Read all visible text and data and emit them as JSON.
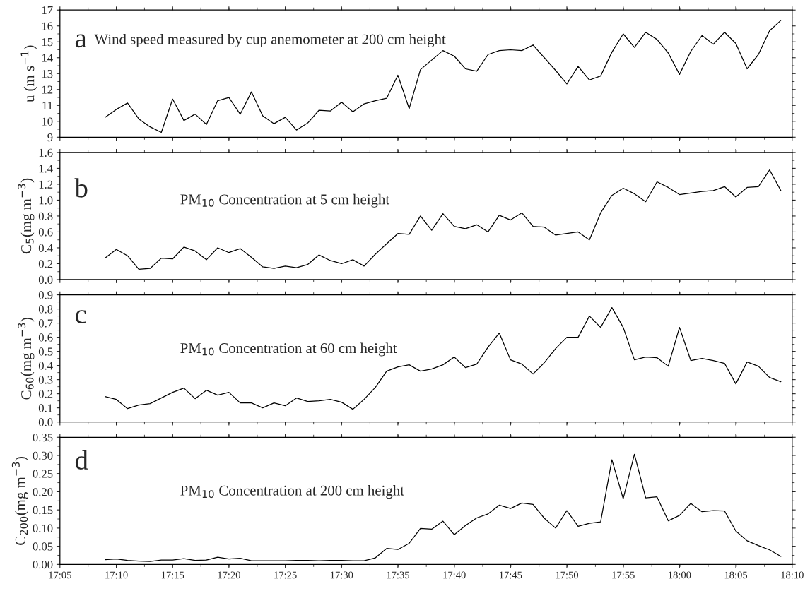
{
  "chart_data": [
    {
      "type": "line",
      "tick_labels": "y",
      "ylabel": "u (m s$^{−1}$)",
      "annotations": [
        "a",
        "Wind speed measured by cup anemometer at 200 cm height"
      ],
      "xlim": [
        17.0833,
        18.1667
      ],
      "xticks": [
        {
          "value": 17.0833,
          "label": null
        },
        {
          "value": 17.1667,
          "label": null
        },
        {
          "value": 17.25,
          "label": null
        },
        {
          "value": 17.3333,
          "label": null
        },
        {
          "value": 17.4167,
          "label": null
        },
        {
          "value": 17.5,
          "label": null
        },
        {
          "value": 17.5833,
          "label": null
        },
        {
          "value": 17.6667,
          "label": null
        },
        {
          "value": 17.75,
          "label": null
        },
        {
          "value": 17.8333,
          "label": null
        },
        {
          "value": 17.9167,
          "label": null
        },
        {
          "value": 18.0,
          "label": null
        },
        {
          "value": 18.0833,
          "label": null
        },
        {
          "value": 18.1667,
          "label": null
        }
      ],
      "ylim": [
        9,
        17
      ],
      "yticks": [
        9,
        10,
        11,
        12,
        13,
        14,
        15,
        16,
        17
      ],
      "series": [
        {
          "color": "#000000",
          "x": [
            17.15,
            17.1667,
            17.1833,
            17.2,
            17.2167,
            17.2333,
            17.25,
            17.2667,
            17.2833,
            17.3,
            17.3167,
            17.3333,
            17.35,
            17.3667,
            17.3833,
            17.4,
            17.4167,
            17.4333,
            17.45,
            17.4667,
            17.4833,
            17.5,
            17.5167,
            17.5333,
            17.55,
            17.5667,
            17.5833,
            17.6,
            17.6167,
            17.6333,
            17.65,
            17.6667,
            17.6833,
            17.7,
            17.7167,
            17.7333,
            17.75,
            17.7667,
            17.7833,
            17.8,
            17.8167,
            17.8333,
            17.85,
            17.8667,
            17.8833,
            17.9,
            17.9167,
            17.9333,
            17.95,
            17.9667,
            17.9833,
            18.0,
            18.0167,
            18.0333,
            18.05,
            18.0667,
            18.0833,
            18.1,
            18.1167,
            18.1333,
            18.15
          ],
          "values": [
            10.25,
            10.75,
            11.15,
            10.15,
            9.65,
            9.3,
            11.4,
            10.05,
            10.45,
            9.8,
            11.3,
            11.5,
            10.45,
            11.85,
            10.35,
            9.85,
            10.25,
            9.45,
            9.9,
            10.7,
            10.65,
            11.2,
            10.6,
            11.1,
            11.3,
            11.45,
            12.9,
            10.8,
            13.25,
            13.85,
            14.45,
            14.1,
            13.3,
            13.15,
            14.2,
            14.45,
            14.5,
            14.45,
            14.8,
            14.0,
            13.2,
            12.35,
            13.45,
            12.6,
            12.85,
            14.35,
            15.5,
            14.65,
            15.6,
            15.15,
            14.3,
            12.95,
            14.4,
            15.4,
            14.85,
            15.6,
            14.9,
            13.3,
            14.2,
            15.7,
            16.35
          ]
        }
      ]
    },
    {
      "type": "line",
      "tick_labels": "y",
      "ylabel": "C$_{5}$(mg m$^{−3}$)",
      "annotations": [
        "b",
        "PM$_{10}$ Concentration at 5 cm height"
      ],
      "xlim": [
        17.0833,
        18.1667
      ],
      "xticks": [
        {
          "value": 17.0833,
          "label": null
        },
        {
          "value": 17.1667,
          "label": null
        },
        {
          "value": 17.25,
          "label": null
        },
        {
          "value": 17.3333,
          "label": null
        },
        {
          "value": 17.4167,
          "label": null
        },
        {
          "value": 17.5,
          "label": null
        },
        {
          "value": 17.5833,
          "label": null
        },
        {
          "value": 17.6667,
          "label": null
        },
        {
          "value": 17.75,
          "label": null
        },
        {
          "value": 17.8333,
          "label": null
        },
        {
          "value": 17.9167,
          "label": null
        },
        {
          "value": 18.0,
          "label": null
        },
        {
          "value": 18.0833,
          "label": null
        },
        {
          "value": 18.1667,
          "label": null
        }
      ],
      "ylim": [
        0,
        1.6
      ],
      "yticks": [
        {
          "value": 0,
          "label": "0.0"
        },
        0.2,
        0.4,
        0.6,
        0.8,
        {
          "value": 1,
          "label": "1.0"
        },
        1.2,
        1.4,
        1.6
      ],
      "series": [
        {
          "color": "#000000",
          "x": [
            17.15,
            17.1667,
            17.1833,
            17.2,
            17.2167,
            17.2333,
            17.25,
            17.2667,
            17.2833,
            17.3,
            17.3167,
            17.3333,
            17.35,
            17.3667,
            17.3833,
            17.4,
            17.4167,
            17.4333,
            17.45,
            17.4667,
            17.4833,
            17.5,
            17.5167,
            17.5333,
            17.55,
            17.5667,
            17.5833,
            17.6,
            17.6167,
            17.6333,
            17.65,
            17.6667,
            17.6833,
            17.7,
            17.7167,
            17.7333,
            17.75,
            17.7667,
            17.7833,
            17.8,
            17.8167,
            17.8333,
            17.85,
            17.8667,
            17.8833,
            17.9,
            17.9167,
            17.9333,
            17.95,
            17.9667,
            17.9833,
            18.0,
            18.0167,
            18.0333,
            18.05,
            18.0667,
            18.0833,
            18.1,
            18.1167,
            18.1333,
            18.15
          ],
          "values": [
            0.27,
            0.38,
            0.3,
            0.13,
            0.14,
            0.27,
            0.26,
            0.41,
            0.36,
            0.25,
            0.4,
            0.34,
            0.39,
            0.28,
            0.16,
            0.14,
            0.17,
            0.15,
            0.19,
            0.31,
            0.24,
            0.2,
            0.25,
            0.17,
            0.32,
            0.45,
            0.58,
            0.57,
            0.8,
            0.62,
            0.83,
            0.67,
            0.64,
            0.69,
            0.6,
            0.81,
            0.75,
            0.84,
            0.67,
            0.66,
            0.56,
            0.58,
            0.6,
            0.5,
            0.84,
            1.06,
            1.15,
            1.08,
            0.98,
            1.23,
            1.16,
            1.07,
            1.09,
            1.11,
            1.12,
            1.17,
            1.04,
            1.16,
            1.17,
            1.38,
            1.12
          ]
        }
      ]
    },
    {
      "type": "line",
      "tick_labels": "y",
      "ylabel": "C$_{60}$(mg m$^{−3}$)",
      "annotations": [
        "c",
        "PM$_{10}$ Concentration at 60 cm height"
      ],
      "xlim": [
        17.0833,
        18.1667
      ],
      "xticks": [
        {
          "value": 17.0833,
          "label": null
        },
        {
          "value": 17.1667,
          "label": null
        },
        {
          "value": 17.25,
          "label": null
        },
        {
          "value": 17.3333,
          "label": null
        },
        {
          "value": 17.4167,
          "label": null
        },
        {
          "value": 17.5,
          "label": null
        },
        {
          "value": 17.5833,
          "label": null
        },
        {
          "value": 17.6667,
          "label": null
        },
        {
          "value": 17.75,
          "label": null
        },
        {
          "value": 17.8333,
          "label": null
        },
        {
          "value": 17.9167,
          "label": null
        },
        {
          "value": 18.0,
          "label": null
        },
        {
          "value": 18.0833,
          "label": null
        },
        {
          "value": 18.1667,
          "label": null
        }
      ],
      "ylim": [
        0,
        0.9
      ],
      "yticks": [
        {
          "value": 0,
          "label": "0.0"
        },
        0.1,
        0.2,
        0.3,
        0.4,
        0.5,
        0.6,
        0.7,
        0.8,
        0.9
      ],
      "series": [
        {
          "color": "#000000",
          "x": [
            17.15,
            17.1667,
            17.1833,
            17.2,
            17.2167,
            17.2333,
            17.25,
            17.2667,
            17.2833,
            17.3,
            17.3167,
            17.3333,
            17.35,
            17.3667,
            17.3833,
            17.4,
            17.4167,
            17.4333,
            17.45,
            17.4667,
            17.4833,
            17.5,
            17.5167,
            17.5333,
            17.55,
            17.5667,
            17.5833,
            17.6,
            17.6167,
            17.6333,
            17.65,
            17.6667,
            17.6833,
            17.7,
            17.7167,
            17.7333,
            17.75,
            17.7667,
            17.7833,
            17.8,
            17.8167,
            17.8333,
            17.85,
            17.8667,
            17.8833,
            17.9,
            17.9167,
            17.9333,
            17.95,
            17.9667,
            17.9833,
            18.0,
            18.0167,
            18.0333,
            18.05,
            18.0667,
            18.0833,
            18.1,
            18.1167,
            18.1333,
            18.15
          ],
          "values": [
            0.18,
            0.16,
            0.095,
            0.12,
            0.13,
            0.17,
            0.21,
            0.24,
            0.165,
            0.225,
            0.19,
            0.21,
            0.135,
            0.135,
            0.1,
            0.135,
            0.115,
            0.17,
            0.145,
            0.15,
            0.16,
            0.14,
            0.09,
            0.16,
            0.245,
            0.36,
            0.39,
            0.405,
            0.36,
            0.375,
            0.405,
            0.46,
            0.385,
            0.41,
            0.53,
            0.63,
            0.44,
            0.41,
            0.34,
            0.42,
            0.52,
            0.6,
            0.6,
            0.75,
            0.67,
            0.81,
            0.67,
            0.44,
            0.46,
            0.455,
            0.395,
            0.67,
            0.435,
            0.45,
            0.435,
            0.415,
            0.27,
            0.425,
            0.395,
            0.315,
            0.285
          ]
        }
      ]
    },
    {
      "type": "line",
      "ylabel": "C$_{200}$(mg m$^{−3}$)",
      "annotations": [
        "d",
        "PM$_{10}$ Concentration at 200 cm height"
      ],
      "xlim": [
        17.0833,
        18.1667
      ],
      "xticks": [
        {
          "value": 17.0833,
          "label": "17:05"
        },
        {
          "value": 17.1667,
          "label": "17:10"
        },
        {
          "value": 17.25,
          "label": "17:15"
        },
        {
          "value": 17.3333,
          "label": "17:20"
        },
        {
          "value": 17.4167,
          "label": "17:25"
        },
        {
          "value": 17.5,
          "label": "17:30"
        },
        {
          "value": 17.5833,
          "label": "17:35"
        },
        {
          "value": 17.6667,
          "label": "17:40"
        },
        {
          "value": 17.75,
          "label": "17:45"
        },
        {
          "value": 17.8333,
          "label": "17:50"
        },
        {
          "value": 17.9167,
          "label": "17:55"
        },
        {
          "value": 18.0,
          "label": "18:00"
        },
        {
          "value": 18.0833,
          "label": "18:05"
        },
        {
          "value": 18.1667,
          "label": "18:10"
        }
      ],
      "ylim": [
        0,
        0.35
      ],
      "yticks": [
        {
          "value": 0,
          "label": "0.00"
        },
        0.05,
        {
          "value": 0.1,
          "label": "0.10"
        },
        0.15,
        {
          "value": 0.2,
          "label": "0.20"
        },
        0.25,
        {
          "value": 0.3,
          "label": "0.30"
        },
        0.35
      ],
      "series": [
        {
          "color": "#000000",
          "x": [
            17.15,
            17.1667,
            17.1833,
            17.2,
            17.2167,
            17.2333,
            17.25,
            17.2667,
            17.2833,
            17.3,
            17.3167,
            17.3333,
            17.35,
            17.3667,
            17.3833,
            17.4,
            17.4167,
            17.4333,
            17.45,
            17.4667,
            17.4833,
            17.5,
            17.5167,
            17.5333,
            17.55,
            17.5667,
            17.5833,
            17.6,
            17.6167,
            17.6333,
            17.65,
            17.6667,
            17.6833,
            17.7,
            17.7167,
            17.7333,
            17.75,
            17.7667,
            17.7833,
            17.8,
            17.8167,
            17.8333,
            17.85,
            17.8667,
            17.8833,
            17.9,
            17.9167,
            17.9333,
            17.95,
            17.9667,
            17.9833,
            18.0,
            18.0167,
            18.0333,
            18.05,
            18.0667,
            18.0833,
            18.1,
            18.1167,
            18.1333,
            18.15
          ],
          "values": [
            0.013,
            0.015,
            0.011,
            0.009,
            0.008,
            0.012,
            0.012,
            0.016,
            0.011,
            0.012,
            0.02,
            0.015,
            0.017,
            0.01,
            0.01,
            0.01,
            0.01,
            0.011,
            0.011,
            0.01,
            0.011,
            0.011,
            0.01,
            0.01,
            0.018,
            0.044,
            0.041,
            0.058,
            0.099,
            0.097,
            0.119,
            0.082,
            0.107,
            0.128,
            0.139,
            0.163,
            0.154,
            0.169,
            0.165,
            0.127,
            0.1,
            0.148,
            0.105,
            0.113,
            0.117,
            0.288,
            0.181,
            0.303,
            0.183,
            0.186,
            0.12,
            0.135,
            0.168,
            0.145,
            0.148,
            0.147,
            0.092,
            0.065,
            0.052,
            0.04,
            0.022
          ]
        }
      ]
    }
  ]
}
